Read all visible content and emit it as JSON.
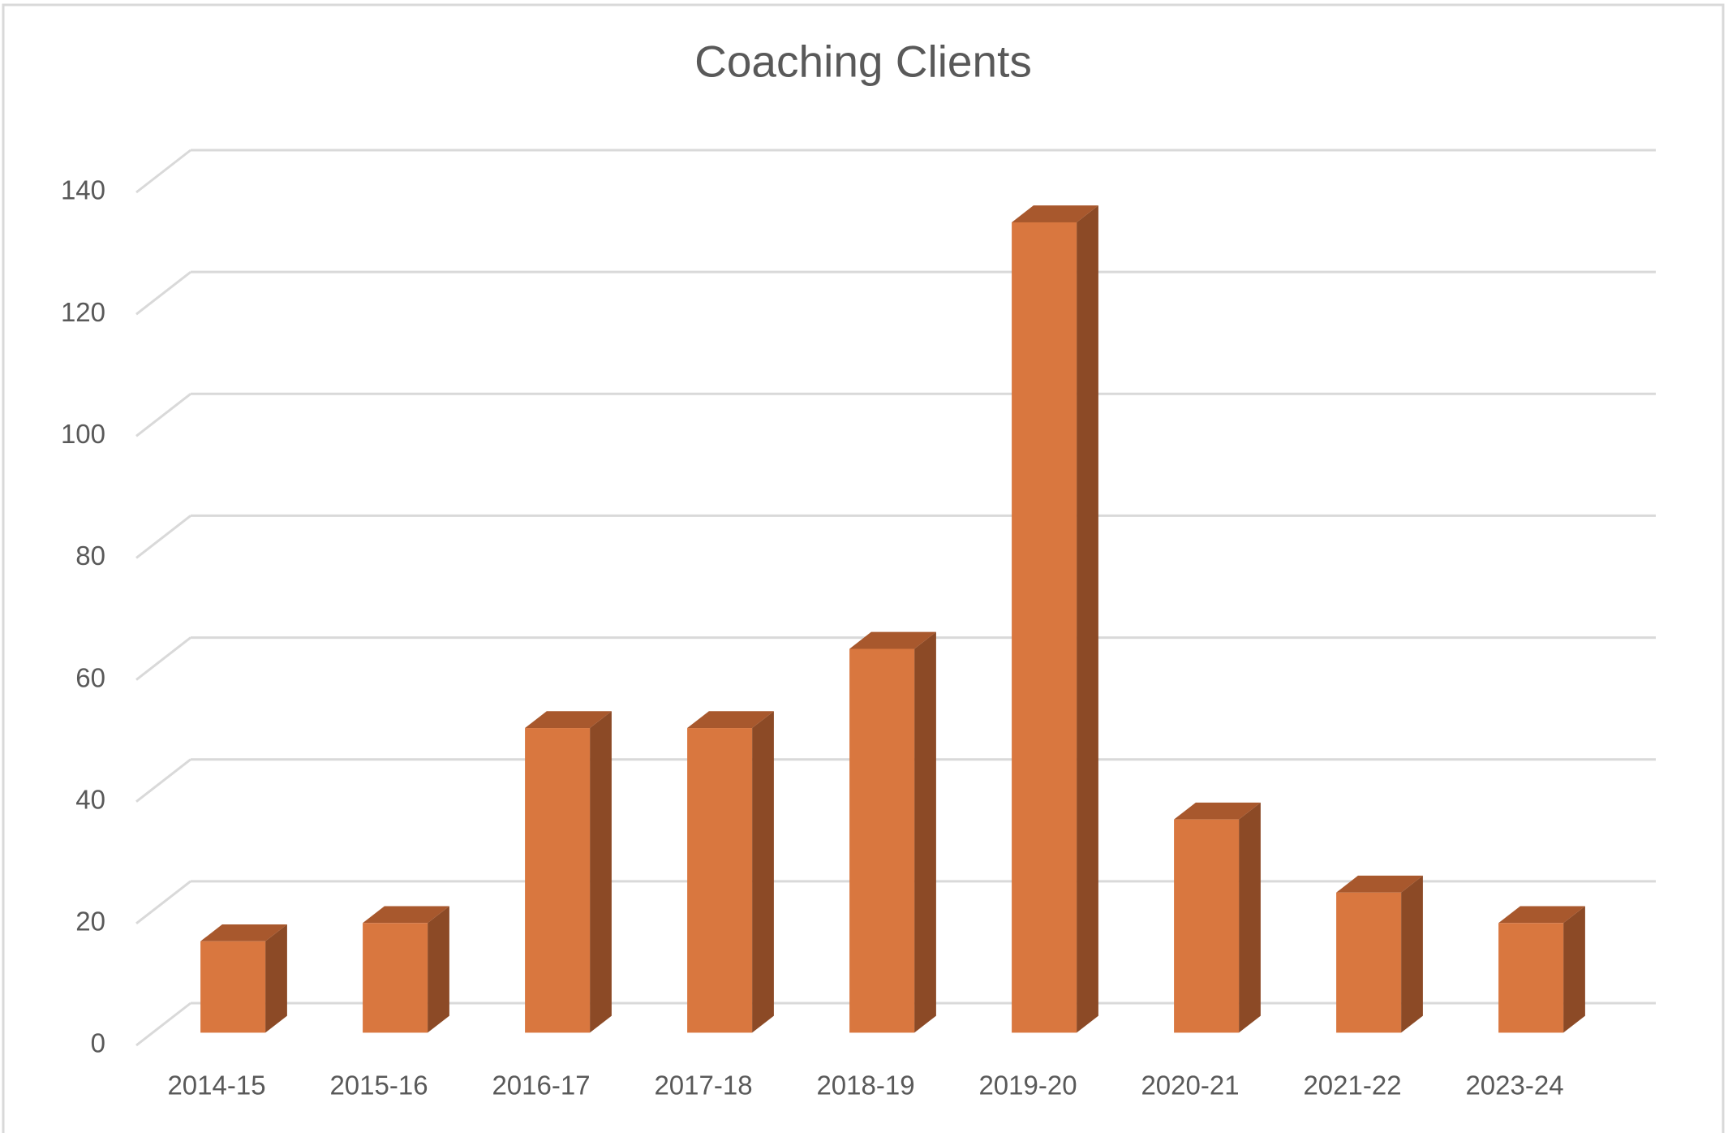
{
  "chart_data": {
    "type": "bar3d",
    "title": "Coaching Clients",
    "categories": [
      "2014-15",
      "2015-16",
      "2016-17",
      "2017-18",
      "2018-19",
      "2019-20",
      "2020-21",
      "2021-22",
      "2023-24"
    ],
    "values": [
      15,
      18,
      50,
      50,
      63,
      133,
      35,
      23,
      18
    ],
    "color": "#d9773f",
    "side_color": "#8c4a26",
    "top_color": "#a8582d",
    "ylim": [
      0,
      140
    ],
    "yticks": [
      0,
      20,
      40,
      60,
      80,
      100,
      120,
      140
    ],
    "grid": true
  }
}
